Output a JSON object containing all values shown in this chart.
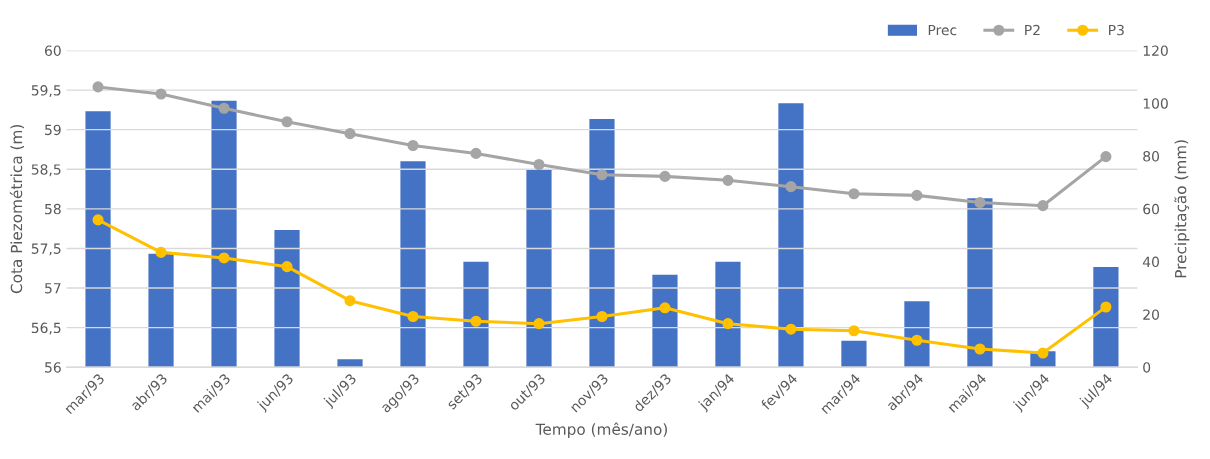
{
  "chart_data": {
    "type": "bar",
    "xlabel": "Tempo (mês/ano)",
    "ylabel": "Cota Piezométrica (m)",
    "y2label": "Precipitação (mm)",
    "categories": [
      "mar/93",
      "abr/93",
      "mai/93",
      "jun/93",
      "jul/93",
      "ago/93",
      "set/93",
      "out/93",
      "nov/93",
      "dez/93",
      "jan/94",
      "fev/94",
      "mar/94",
      "abr/94",
      "mai/94",
      "jun/94",
      "jul/94"
    ],
    "series": [
      {
        "name": "Prec",
        "axis": "y2",
        "color": "#4472c4",
        "values": [
          97,
          43,
          101,
          52,
          3,
          78,
          40,
          75,
          94,
          35,
          40,
          100,
          10,
          25,
          64,
          6,
          38
        ]
      },
      {
        "name": "P2",
        "type": "line",
        "color": "#a5a5a5",
        "marker": "circle",
        "values": [
          59.54,
          59.45,
          59.27,
          59.1,
          58.95,
          58.8,
          58.7,
          58.56,
          58.43,
          58.41,
          58.36,
          58.28,
          58.19,
          58.17,
          58.08,
          58.04,
          58.66
        ]
      },
      {
        "name": "P3",
        "type": "line",
        "color": "#ffc000",
        "marker": "circle",
        "values": [
          57.86,
          57.45,
          57.38,
          57.27,
          56.84,
          56.64,
          56.58,
          56.55,
          56.64,
          56.75,
          56.55,
          56.48,
          56.46,
          56.34,
          56.23,
          56.18,
          56.76
        ]
      }
    ],
    "ylim": [
      56,
      60
    ],
    "yticks": [
      56,
      {
        "value": 56.5,
        "label": "56,5"
      },
      57,
      {
        "value": 57.5,
        "label": "57,5"
      },
      58,
      {
        "value": 58.5,
        "label": "58,5"
      },
      59,
      {
        "value": 59.5,
        "label": "59,5"
      },
      60
    ],
    "y2lim": [
      0,
      120
    ],
    "y2ticks": [
      0,
      20,
      40,
      60,
      80,
      100,
      120
    ],
    "grid": "y",
    "legend": "top right"
  }
}
